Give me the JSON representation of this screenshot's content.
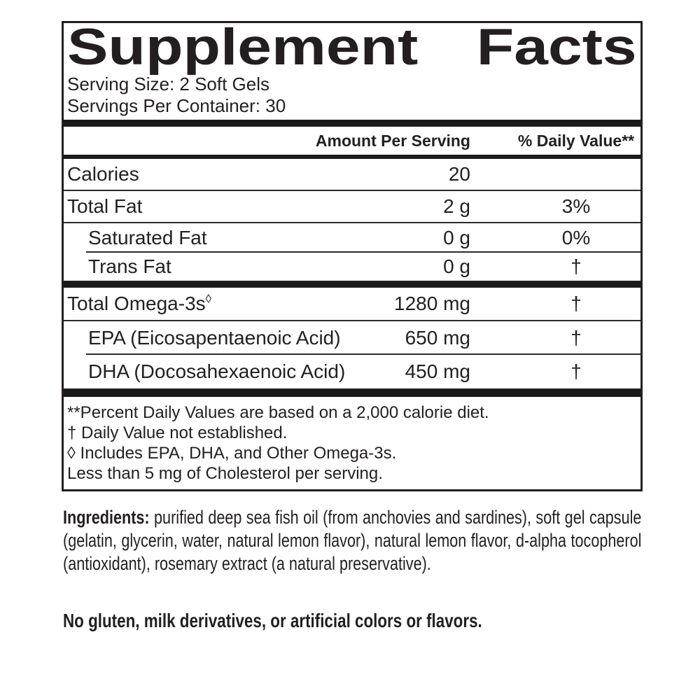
{
  "panel": {
    "title_words": [
      "Supplement",
      "Facts"
    ],
    "serving_size": "Serving Size: 2 Soft Gels",
    "servings_per_container": "Servings Per Container: 30",
    "header": {
      "amount": "Amount Per Serving",
      "daily_value": "% Daily Value**"
    },
    "rows": [
      {
        "name": "Calories",
        "amount": "20",
        "dv": ""
      },
      {
        "name": "Total Fat",
        "amount": "2 g",
        "dv": "3%"
      },
      {
        "name": "Saturated Fat",
        "amount": "0 g",
        "dv": "0%"
      },
      {
        "name": "Trans Fat",
        "amount": "0 g",
        "dv": "†"
      },
      {
        "name": "Total Omega-3s",
        "superscript": "◊",
        "amount": "1280 mg",
        "dv": "†"
      },
      {
        "name": "EPA (Eicosapentaenoic Acid)",
        "amount": "650 mg",
        "dv": "†"
      },
      {
        "name": "DHA (Docosahexaenoic Acid)",
        "amount": "450 mg",
        "dv": "†"
      }
    ],
    "footnotes": [
      "**Percent Daily Values are based on a 2,000 calorie diet.",
      "† Daily Value not established.",
      "◊ Includes EPA, DHA, and Other Omega-3s.",
      "Less than 5 mg of Cholesterol per serving."
    ]
  },
  "ingredients": {
    "label": "Ingredients:",
    "text": " purified deep sea fish oil (from anchovies and sardines), soft gel capsule (gelatin, glycerin, water, natural lemon flavor), natural lemon flavor, d-alpha tocopherol (antioxidant), rosemary extract (a natural preservative)."
  },
  "allergen_statement": "No gluten, milk derivatives, or artificial colors or flavors.",
  "colors": {
    "text": "#231f20",
    "background": "#ffffff"
  }
}
